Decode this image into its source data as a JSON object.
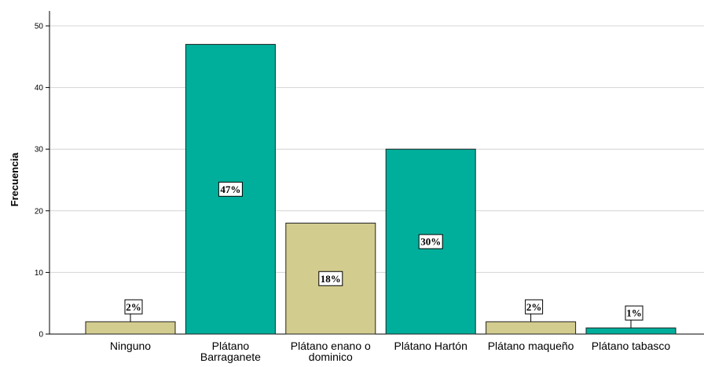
{
  "chart_data": {
    "type": "bar",
    "ylabel": "Frecuencia",
    "xlabel": "",
    "ylim": [
      0,
      50
    ],
    "yticks": [
      0,
      10,
      20,
      30,
      40,
      50
    ],
    "grid": true,
    "categories": [
      "Ninguno",
      "Plátano Barraganete",
      "Plátano enano o dominico",
      "Plátano Hartón",
      "Plátano maqueño",
      "Plátano tabasco"
    ],
    "values": [
      2,
      47,
      18,
      30,
      2,
      1
    ],
    "data_labels": [
      "2%",
      "47%",
      "18%",
      "30%",
      "2%",
      "1%"
    ],
    "colors": {
      "tan": "#d3cc8f",
      "teal": "#00af9b",
      "grid": "#d4d4d4",
      "edge": "#222222"
    },
    "bar_colors": [
      "tan",
      "teal",
      "tan",
      "teal",
      "tan",
      "teal"
    ]
  }
}
